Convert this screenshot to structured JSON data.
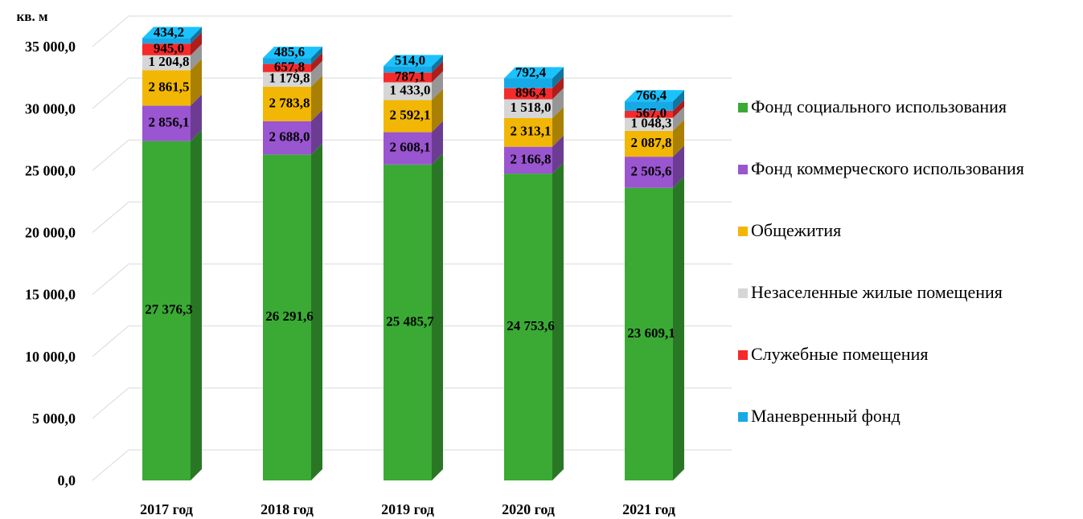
{
  "chart_data": {
    "type": "bar",
    "stacked": true,
    "y_label": "кв. м",
    "categories": [
      "2017 год",
      "2018 год",
      "2019 год",
      "2020 год",
      "2021 год"
    ],
    "series": [
      {
        "name": "Фонд социального использования",
        "color": "#3aaa35",
        "values": [
          27376.3,
          26291.6,
          25485.7,
          24753.6,
          23609.1
        ],
        "value_labels": [
          "27 376,3",
          "26 291,6",
          "25 485,7",
          "24 753,6",
          "23 609,1"
        ]
      },
      {
        "name": "Фонд коммерческого использования",
        "color": "#9a55d0",
        "values": [
          2856.1,
          2688.0,
          2608.1,
          2166.8,
          2505.6
        ],
        "value_labels": [
          "2 856,1",
          "2 688,0",
          "2 608,1",
          "2 166,8",
          "2 505,6"
        ]
      },
      {
        "name": "Общежития",
        "color": "#f2b705",
        "values": [
          2861.5,
          2783.8,
          2592.1,
          2313.1,
          2087.8
        ],
        "value_labels": [
          "2 861,5",
          "2 783,8",
          "2 592,1",
          "2 313,1",
          "2 087,8"
        ]
      },
      {
        "name": "Незаселенные жилые помещения",
        "color": "#d6d6d6",
        "values": [
          1204.8,
          1179.8,
          1433.0,
          1518.0,
          1048.3
        ],
        "value_labels": [
          "1 204,8",
          "1 179,8",
          "1 433,0",
          "1 518,0",
          "1 048,3"
        ]
      },
      {
        "name": "Служебные помещения",
        "color": "#f52a2a",
        "values": [
          945.0,
          657.8,
          787.1,
          896.4,
          567.0
        ],
        "value_labels": [
          "945,0",
          "657,8",
          "787,1",
          "896,4",
          "567,0"
        ]
      },
      {
        "name": "Маневренный фонд",
        "color": "#17a9e6",
        "values": [
          434.2,
          485.6,
          514.0,
          792.4,
          766.4
        ],
        "value_labels": [
          "434,2",
          "485,6",
          "514,0",
          "792,4",
          "766,4"
        ]
      }
    ],
    "ylim": [
      0,
      35000
    ],
    "yticks": [
      {
        "value": 0,
        "label": "0,0"
      },
      {
        "value": 5000,
        "label": "5 000,0"
      },
      {
        "value": 10000,
        "label": "10 000,0"
      },
      {
        "value": 15000,
        "label": "15 000,0"
      },
      {
        "value": 20000,
        "label": "20 000,0"
      },
      {
        "value": 25000,
        "label": "25 000,0"
      },
      {
        "value": 30000,
        "label": "30 000,0"
      },
      {
        "value": 35000,
        "label": "35 000,0"
      }
    ],
    "grid": true,
    "legend": "right"
  }
}
